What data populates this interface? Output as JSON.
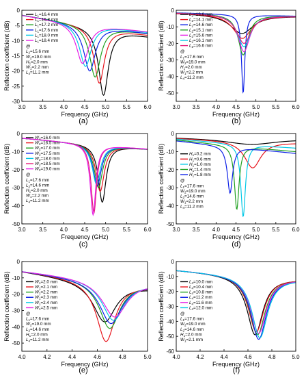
{
  "chart_data": [
    {
      "panel": "(a)",
      "type": "line",
      "xlabel": "Frequency (GHz)",
      "ylabel": "Reflection coefficient (dB)",
      "xlim": [
        3.0,
        6.0
      ],
      "ylim": [
        -30,
        0
      ],
      "xticks": [
        3.0,
        3.5,
        4.0,
        4.5,
        5.0,
        5.5,
        6.0
      ],
      "yticks": [
        0,
        -5,
        -10,
        -15,
        -20,
        -25,
        -30
      ],
      "legend_position": "top-left",
      "annotation": [
        "@",
        "L_2=15.6 mm",
        "W_2=19.0 mm",
        "H_1=2.0 mm",
        "W_1=2.2 mm",
        "L_4=11.2 mm"
      ],
      "series": [
        {
          "name": "L_1=16.4 mm",
          "color": "#000000",
          "fmin": 4.95,
          "depth": -28,
          "bw": 0.14,
          "start": -1.5,
          "end": -8.5
        },
        {
          "name": "L_1=16.8 mm",
          "color": "#e8141c",
          "fmin": 4.85,
          "depth": -24,
          "bw": 0.15,
          "start": -1.5,
          "end": -8.0
        },
        {
          "name": "L_1=17.2 mm",
          "color": "#1fa01f",
          "fmin": 4.75,
          "depth": -22,
          "bw": 0.16,
          "start": -1.5,
          "end": -7.5
        },
        {
          "name": "L_1=17.6 mm",
          "color": "#0a1ee6",
          "fmin": 4.62,
          "depth": -20,
          "bw": 0.17,
          "start": -1.5,
          "end": -7.5
        },
        {
          "name": "L_1=18.0 mm",
          "color": "#00c8e6",
          "fmin": 4.52,
          "depth": -18.5,
          "bw": 0.17,
          "start": -1.5,
          "end": -7.2
        },
        {
          "name": "L_1=18.4 mm",
          "color": "#e61ee6",
          "fmin": 4.45,
          "depth": -17.5,
          "bw": 0.18,
          "start": -1.5,
          "end": -7.0
        }
      ]
    },
    {
      "panel": "(b)",
      "type": "line",
      "xlabel": "Frequency (GHz)",
      "ylabel": "Reflection coefficient (dB)",
      "xlim": [
        3.0,
        6.0
      ],
      "ylim": [
        -55,
        0
      ],
      "xticks": [
        3.0,
        3.5,
        4.0,
        4.5,
        5.0,
        5.5,
        6.0
      ],
      "yticks": [
        0,
        -10,
        -20,
        -30,
        -40,
        -50
      ],
      "legend_position": "top-left",
      "annotation": [
        "@",
        "L_1=17.6 mm",
        "W_2=19.0 mm",
        "H_1=2.0 mm",
        "W_1=2.2 mm",
        "L_4=11.2 mm"
      ],
      "series": [
        {
          "name": "L_2=13.6 mm",
          "color": "#000000",
          "fmin": 4.65,
          "depth": -14,
          "bw": 0.35,
          "start": -1.5,
          "end": -3.5
        },
        {
          "name": "L_2=14.1 mm",
          "color": "#e8141c",
          "fmin": 4.66,
          "depth": -17,
          "bw": 0.28,
          "start": -1.5,
          "end": -3.5
        },
        {
          "name": "L_2=14.6 mm",
          "color": "#0a1ee6",
          "fmin": 4.68,
          "depth": -50,
          "bw": 0.05,
          "start": -1.5,
          "end": -3.5
        },
        {
          "name": "L_2=15.1 mm",
          "color": "#1fa01f",
          "fmin": 4.68,
          "depth": -27,
          "bw": 0.15,
          "start": -1.5,
          "end": -3.5
        },
        {
          "name": "L_2=15.6 mm",
          "color": "#e61ee6",
          "fmin": 4.7,
          "depth": -25,
          "bw": 0.18,
          "start": -1.5,
          "end": -3.5
        },
        {
          "name": "L_2=16.1 mm",
          "color": "#00c8e6",
          "fmin": 4.7,
          "depth": -22,
          "bw": 0.2,
          "start": -1.5,
          "end": -3.5
        },
        {
          "name": "L_2=16.6 mm",
          "color": "#e61e7a",
          "fmin": 4.7,
          "depth": -20,
          "bw": 0.22,
          "start": -1.5,
          "end": -3.5
        }
      ]
    },
    {
      "panel": "(c)",
      "type": "line",
      "xlabel": "Frequency (GHz)",
      "ylabel": "Reflection coefficient (dB)",
      "xlim": [
        3.0,
        6.0
      ],
      "ylim": [
        -50,
        0
      ],
      "xticks": [
        3.0,
        3.5,
        4.0,
        4.5,
        5.0,
        5.5,
        6.0
      ],
      "yticks": [
        0,
        -10,
        -20,
        -30,
        -40,
        -50
      ],
      "legend_position": "top-left",
      "annotation": [
        "@",
        "L_1=17.6 mm",
        "L_2=14.6 mm",
        "H_1=2.0 mm",
        "W_1=2.2 mm",
        "L_4=11.2 mm"
      ],
      "series": [
        {
          "name": "W_2=16.0 mm",
          "color": "#000000",
          "fmin": 4.92,
          "depth": -38,
          "bw": 0.11,
          "start": -2.5,
          "end": -8.5
        },
        {
          "name": "W_2=16.5 mm",
          "color": "#e8141c",
          "fmin": 4.87,
          "depth": -32,
          "bw": 0.12,
          "start": -2.5,
          "end": -8.5
        },
        {
          "name": "W_2=17.0 mm",
          "color": "#1fa01f",
          "fmin": 4.83,
          "depth": -30,
          "bw": 0.12,
          "start": -2.5,
          "end": -8.5
        },
        {
          "name": "W_2=17.5 mm",
          "color": "#0a1ee6",
          "fmin": 4.8,
          "depth": -29,
          "bw": 0.12,
          "start": -2.5,
          "end": -8.5
        },
        {
          "name": "W_2=18.0 mm",
          "color": "#00c8e6",
          "fmin": 4.78,
          "depth": -28,
          "bw": 0.12,
          "start": -2.5,
          "end": -8.5
        },
        {
          "name": "W_2=18.5 mm",
          "color": "#e61e7a",
          "fmin": 4.72,
          "depth": -44,
          "bw": 0.08,
          "start": -2.5,
          "end": -8.5
        },
        {
          "name": "W_2=19.0 mm",
          "color": "#e61ee6",
          "fmin": 4.7,
          "depth": -45,
          "bw": 0.08,
          "start": -2.5,
          "end": -8.5
        }
      ]
    },
    {
      "panel": "(d)",
      "type": "line",
      "xlabel": "Frequency (GHz)",
      "ylabel": "Reflection coefficient (dB)",
      "xlim": [
        3.0,
        6.0
      ],
      "ylim": [
        -50,
        0
      ],
      "xticks": [
        3.0,
        3.5,
        4.0,
        4.5,
        5.0,
        5.5,
        6.0
      ],
      "yticks": [
        0,
        -10,
        -20,
        -30,
        -40,
        -50
      ],
      "legend_position": "middle-left",
      "annotation": [
        "@",
        "L_1=17.6 mm",
        "W_2=19.0 mm",
        "L_2=14.6 mm",
        "W_1=2.2 mm",
        "L_4=11.2 mm"
      ],
      "series": [
        {
          "name": "H_1=0.2 mm",
          "color": "#000000",
          "fmin": 4.9,
          "depth": -6,
          "bw": 0.8,
          "start": -2.0,
          "end": -3.0
        },
        {
          "name": "H_1=0.6 mm",
          "color": "#e8141c",
          "fmin": 4.92,
          "depth": -19,
          "bw": 0.25,
          "start": -2.5,
          "end": -5.0
        },
        {
          "name": "H_1=1.0 mm",
          "color": "#00c8e6",
          "fmin": 4.68,
          "depth": -46,
          "bw": 0.07,
          "start": -3.0,
          "end": -8.0
        },
        {
          "name": "H_1=1.4 mm",
          "color": "#1fa01f",
          "fmin": 4.52,
          "depth": -42,
          "bw": 0.07,
          "start": -3.5,
          "end": -10.0
        },
        {
          "name": "H_1=1.8 mm",
          "color": "#0a1ee6",
          "fmin": 4.35,
          "depth": -33,
          "bw": 0.08,
          "start": -4.0,
          "end": -11.0
        }
      ]
    },
    {
      "panel": "(e)",
      "type": "line",
      "xlabel": "Frequency (GHz)",
      "ylabel": "Reflection coefficient (dB)",
      "xlim": [
        4.0,
        5.0
      ],
      "ylim": [
        -55,
        0
      ],
      "xticks": [
        4.0,
        4.2,
        4.4,
        4.6,
        4.8,
        5.0
      ],
      "yticks": [
        0,
        -10,
        -20,
        -30,
        -40,
        -50
      ],
      "legend_position": "middle-left",
      "annotation": [
        "@",
        "L_1=17.6 mm",
        "W_2=19.0 mm",
        "L_2=14.6 mm",
        "H_1=2.0 mm",
        "L_4=11.2 mm"
      ],
      "series": [
        {
          "name": "W_1=2.0 mm",
          "color": "#000000",
          "fmin": 4.66,
          "depth": -37,
          "bw": 0.11,
          "start": -5.5,
          "end": -16.0
        },
        {
          "name": "W_1=2.1 mm",
          "color": "#e8141c",
          "fmin": 4.67,
          "depth": -49,
          "bw": 0.09,
          "start": -5.5,
          "end": -15.0
        },
        {
          "name": "W_1=2.2 mm",
          "color": "#1fa01f",
          "fmin": 4.7,
          "depth": -41,
          "bw": 0.1,
          "start": -5.5,
          "end": -14.5
        },
        {
          "name": "W_1=2.3 mm",
          "color": "#0a1ee6",
          "fmin": 4.71,
          "depth": -38,
          "bw": 0.11,
          "start": -5.5,
          "end": -14.0
        },
        {
          "name": "W_1=2.4 mm",
          "color": "#00c8e6",
          "fmin": 4.73,
          "depth": -36,
          "bw": 0.11,
          "start": -5.5,
          "end": -13.5
        },
        {
          "name": "W_1=2.5 mm",
          "color": "#e61ee6",
          "fmin": 4.74,
          "depth": -34,
          "bw": 0.12,
          "start": -5.5,
          "end": -13.0
        }
      ]
    },
    {
      "panel": "(f)",
      "type": "line",
      "xlabel": "Frequency (GHz)",
      "ylabel": "Reflection coefficient (dB)",
      "xlim": [
        4.0,
        5.0
      ],
      "ylim": [
        -60,
        0
      ],
      "xticks": [
        4.0,
        4.2,
        4.4,
        4.6,
        4.8,
        5.0
      ],
      "yticks": [
        0,
        -10,
        -20,
        -30,
        -40,
        -50,
        -60
      ],
      "legend_position": "middle-left",
      "annotation": [
        "@",
        "L_1=17.6 mm",
        "W_2=19.0 mm",
        "L_2=14.6 mm",
        "H_1=2.0 mm",
        "W_1=2.1 mm"
      ],
      "series": [
        {
          "name": "L_4=10.0 mm",
          "color": "#000000",
          "fmin": 4.66,
          "depth": -49,
          "bw": 0.08,
          "start": -5.5,
          "end": -11.5
        },
        {
          "name": "L_4=10.4 mm",
          "color": "#e8141c",
          "fmin": 4.67,
          "depth": -47,
          "bw": 0.08,
          "start": -5.5,
          "end": -11.5
        },
        {
          "name": "L_4=10.8 mm",
          "color": "#1fa01f",
          "fmin": 4.68,
          "depth": -49,
          "bw": 0.08,
          "start": -5.5,
          "end": -11.5
        },
        {
          "name": "L_4=11.2 mm",
          "color": "#0a1ee6",
          "fmin": 4.69,
          "depth": -52,
          "bw": 0.08,
          "start": -5.5,
          "end": -11.5
        },
        {
          "name": "L_4=11.6 mm",
          "color": "#e61ee6",
          "fmin": 4.69,
          "depth": -48,
          "bw": 0.08,
          "start": -5.5,
          "end": -11.5
        },
        {
          "name": "L_4=12.0 mm",
          "color": "#00c8e6",
          "fmin": 4.7,
          "depth": -51,
          "bw": 0.08,
          "start": -5.5,
          "end": -11.5
        }
      ]
    }
  ]
}
